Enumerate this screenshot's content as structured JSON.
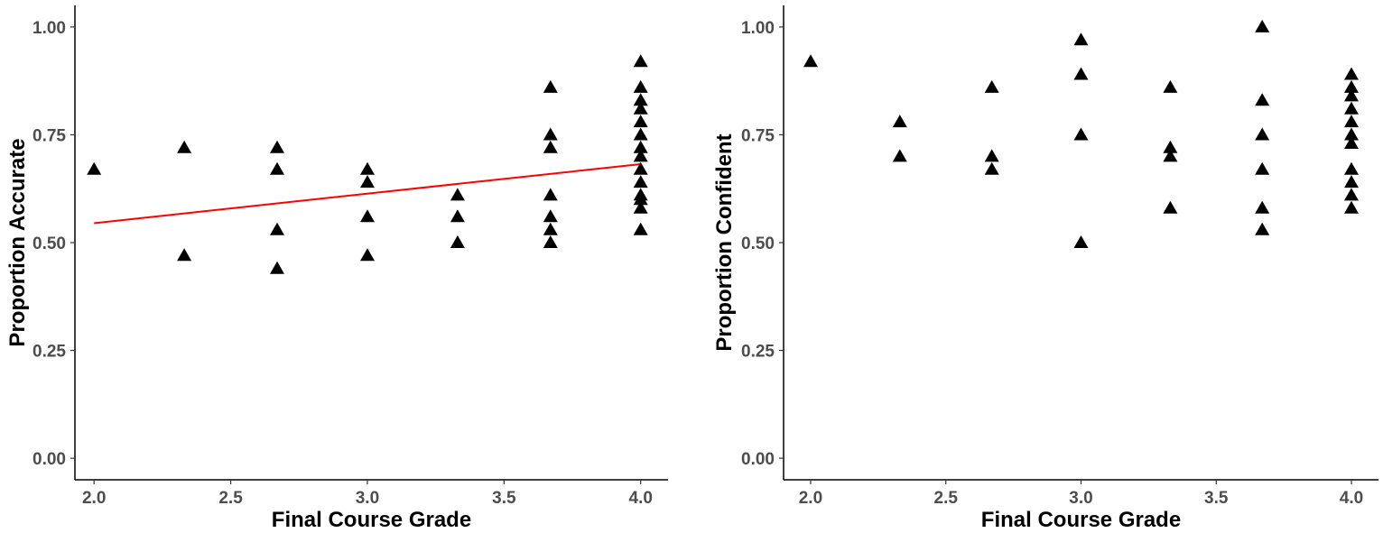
{
  "chart_data": [
    {
      "type": "scatter",
      "title": "",
      "xlabel": "Final Course Grade",
      "ylabel": "Proportion Accurate",
      "xlim": [
        1.93,
        4.1
      ],
      "ylim": [
        -0.05,
        1.05
      ],
      "x_ticks": [
        "2.0",
        "2.5",
        "3.0",
        "3.5",
        "4.0"
      ],
      "y_ticks": [
        "0.00",
        "0.25",
        "0.50",
        "0.75",
        "1.00"
      ],
      "grid": false,
      "marker": "triangle",
      "marker_color": "#000000",
      "points": [
        {
          "x": 2.0,
          "y": 0.67
        },
        {
          "x": 2.33,
          "y": 0.72
        },
        {
          "x": 2.33,
          "y": 0.47
        },
        {
          "x": 2.67,
          "y": 0.72
        },
        {
          "x": 2.67,
          "y": 0.67
        },
        {
          "x": 2.67,
          "y": 0.53
        },
        {
          "x": 2.67,
          "y": 0.44
        },
        {
          "x": 3.0,
          "y": 0.67
        },
        {
          "x": 3.0,
          "y": 0.64
        },
        {
          "x": 3.0,
          "y": 0.56
        },
        {
          "x": 3.0,
          "y": 0.47
        },
        {
          "x": 3.33,
          "y": 0.61
        },
        {
          "x": 3.33,
          "y": 0.56
        },
        {
          "x": 3.33,
          "y": 0.5
        },
        {
          "x": 3.67,
          "y": 0.86
        },
        {
          "x": 3.67,
          "y": 0.75
        },
        {
          "x": 3.67,
          "y": 0.72
        },
        {
          "x": 3.67,
          "y": 0.61
        },
        {
          "x": 3.67,
          "y": 0.56
        },
        {
          "x": 3.67,
          "y": 0.53
        },
        {
          "x": 3.67,
          "y": 0.5
        },
        {
          "x": 4.0,
          "y": 0.92
        },
        {
          "x": 4.0,
          "y": 0.86
        },
        {
          "x": 4.0,
          "y": 0.83
        },
        {
          "x": 4.0,
          "y": 0.81
        },
        {
          "x": 4.0,
          "y": 0.78
        },
        {
          "x": 4.0,
          "y": 0.75
        },
        {
          "x": 4.0,
          "y": 0.72
        },
        {
          "x": 4.0,
          "y": 0.7
        },
        {
          "x": 4.0,
          "y": 0.67
        },
        {
          "x": 4.0,
          "y": 0.64
        },
        {
          "x": 4.0,
          "y": 0.61
        },
        {
          "x": 4.0,
          "y": 0.6
        },
        {
          "x": 4.0,
          "y": 0.58
        },
        {
          "x": 4.0,
          "y": 0.53
        }
      ],
      "trend_line": {
        "color": "#ff0000",
        "x": [
          2.0,
          4.0
        ],
        "y": [
          0.545,
          0.682
        ]
      }
    },
    {
      "type": "scatter",
      "title": "",
      "xlabel": "Final Course Grade",
      "ylabel": "Proportion Confident",
      "xlim": [
        1.9,
        4.1
      ],
      "ylim": [
        -0.05,
        1.05
      ],
      "x_ticks": [
        "2.0",
        "2.5",
        "3.0",
        "3.5",
        "4.0"
      ],
      "y_ticks": [
        "0.00",
        "0.25",
        "0.50",
        "0.75",
        "1.00"
      ],
      "grid": false,
      "marker": "triangle",
      "marker_color": "#000000",
      "points": [
        {
          "x": 2.0,
          "y": 0.92
        },
        {
          "x": 2.33,
          "y": 0.78
        },
        {
          "x": 2.33,
          "y": 0.7
        },
        {
          "x": 2.67,
          "y": 0.86
        },
        {
          "x": 2.67,
          "y": 0.7
        },
        {
          "x": 2.67,
          "y": 0.67
        },
        {
          "x": 3.0,
          "y": 0.97
        },
        {
          "x": 3.0,
          "y": 0.89
        },
        {
          "x": 3.0,
          "y": 0.75
        },
        {
          "x": 3.0,
          "y": 0.5
        },
        {
          "x": 3.33,
          "y": 0.86
        },
        {
          "x": 3.33,
          "y": 0.72
        },
        {
          "x": 3.33,
          "y": 0.7
        },
        {
          "x": 3.33,
          "y": 0.58
        },
        {
          "x": 3.67,
          "y": 1.0
        },
        {
          "x": 3.67,
          "y": 0.83
        },
        {
          "x": 3.67,
          "y": 0.75
        },
        {
          "x": 3.67,
          "y": 0.67
        },
        {
          "x": 3.67,
          "y": 0.58
        },
        {
          "x": 3.67,
          "y": 0.53
        },
        {
          "x": 4.0,
          "y": 0.89
        },
        {
          "x": 4.0,
          "y": 0.86
        },
        {
          "x": 4.0,
          "y": 0.84
        },
        {
          "x": 4.0,
          "y": 0.81
        },
        {
          "x": 4.0,
          "y": 0.78
        },
        {
          "x": 4.0,
          "y": 0.75
        },
        {
          "x": 4.0,
          "y": 0.73
        },
        {
          "x": 4.0,
          "y": 0.67
        },
        {
          "x": 4.0,
          "y": 0.64
        },
        {
          "x": 4.0,
          "y": 0.61
        },
        {
          "x": 4.0,
          "y": 0.58
        }
      ]
    }
  ]
}
